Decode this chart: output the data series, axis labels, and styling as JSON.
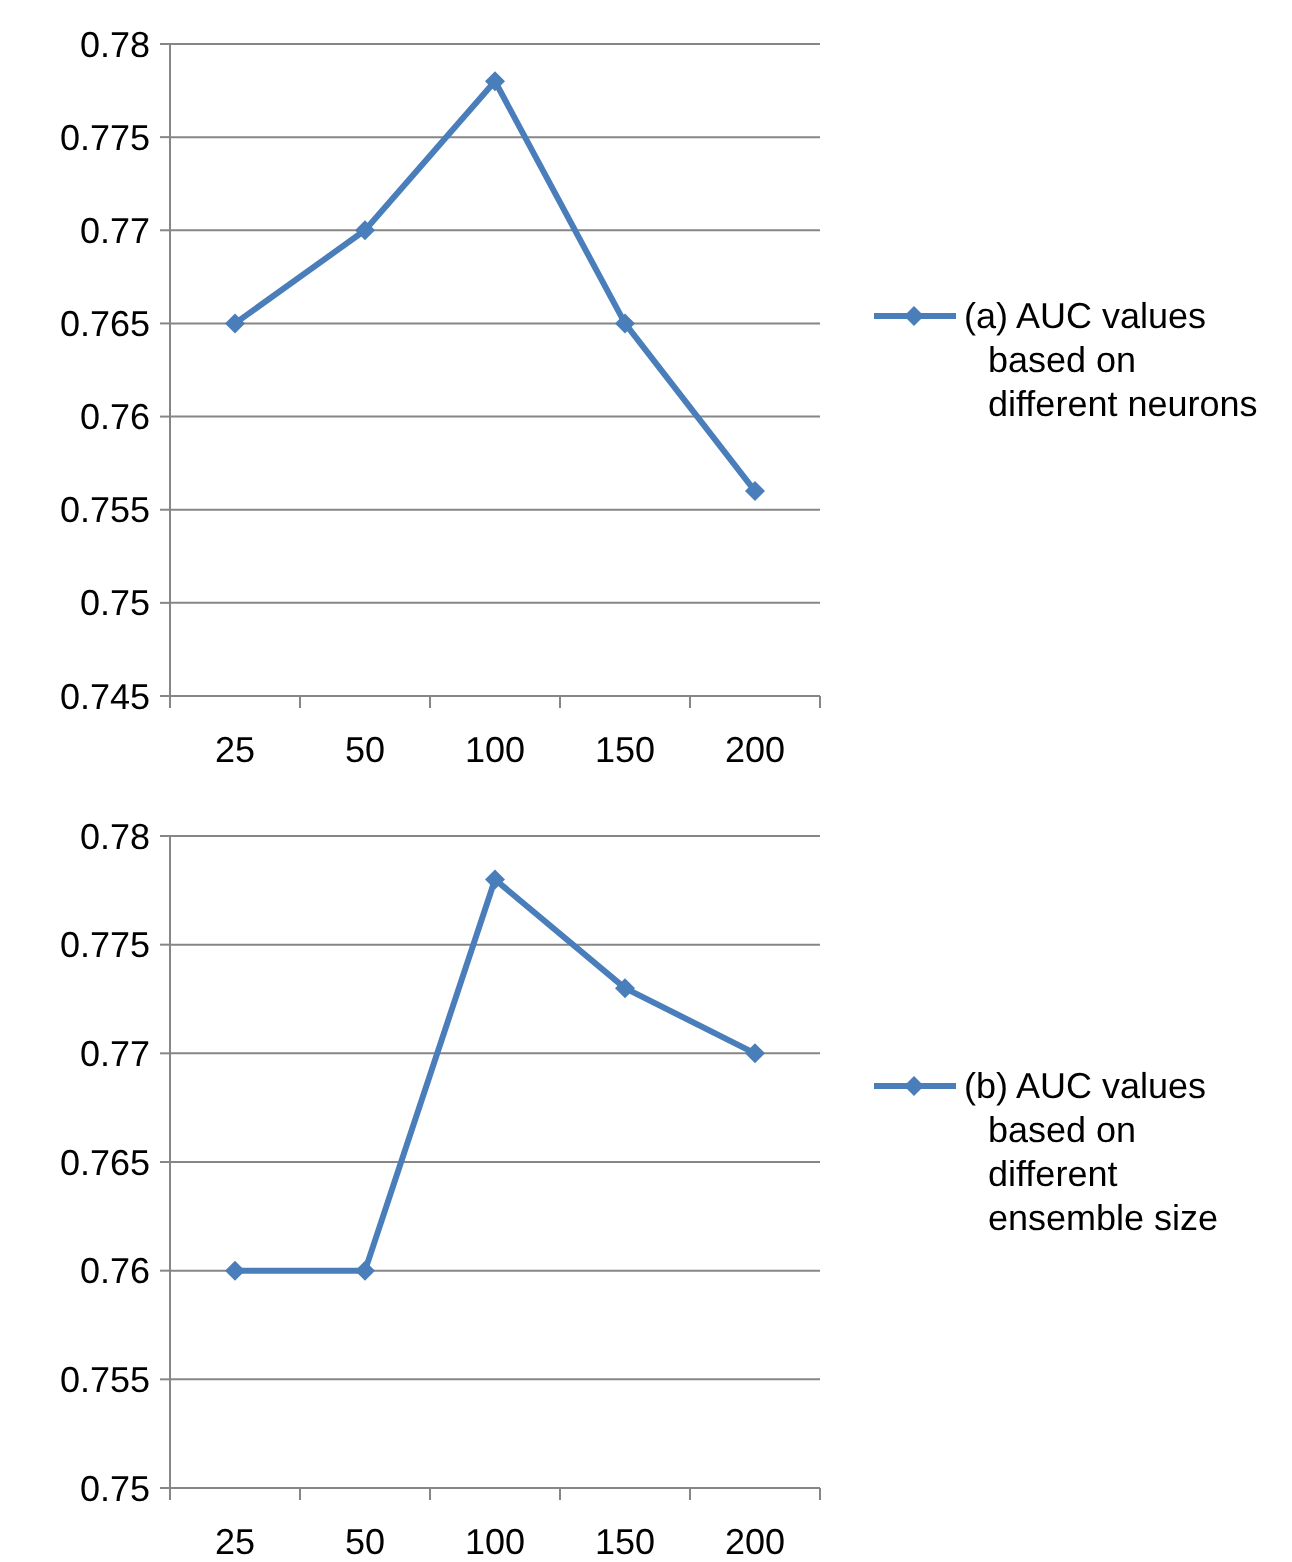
{
  "chart_data": [
    {
      "type": "line",
      "categories": [
        "25",
        "50",
        "100",
        "150",
        "200"
      ],
      "series": [
        {
          "name": "(a) AUC values based on different neurons",
          "color": "#4a7ebb",
          "values": [
            0.765,
            0.77,
            0.778,
            0.765,
            0.756
          ]
        }
      ],
      "ylim": [
        0.745,
        0.78
      ],
      "yticks": [
        0.745,
        0.75,
        0.755,
        0.76,
        0.765,
        0.77,
        0.775,
        0.78
      ],
      "grid": "y",
      "legend": "right",
      "marker": "diamond",
      "line_style": "solid"
    },
    {
      "type": "line",
      "categories": [
        "25",
        "50",
        "100",
        "150",
        "200"
      ],
      "series": [
        {
          "name": "(b) AUC values based on different ensemble size",
          "color": "#4a7ebb",
          "values": [
            0.76,
            0.76,
            0.778,
            0.773,
            0.77
          ]
        }
      ],
      "ylim": [
        0.75,
        0.78
      ],
      "yticks": [
        0.75,
        0.755,
        0.76,
        0.765,
        0.77,
        0.775,
        0.78
      ],
      "grid": "y",
      "legend": "right",
      "marker": "diamond",
      "line_style": "solid"
    }
  ]
}
